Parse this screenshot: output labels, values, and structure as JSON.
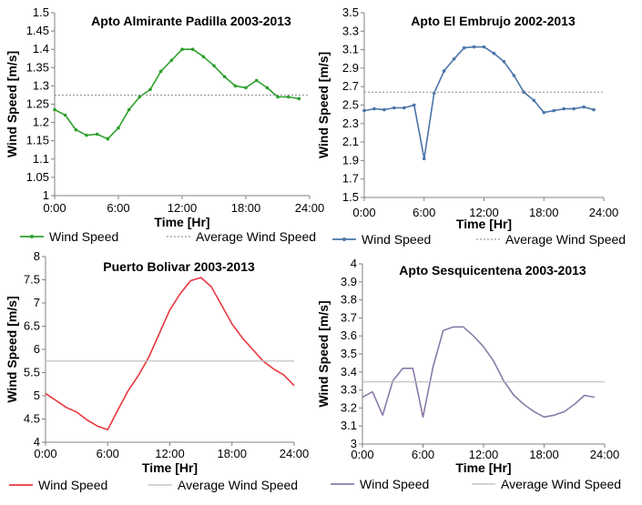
{
  "chart_data": [
    {
      "type": "line",
      "title": "Apto Almirante Padilla 2003-2013",
      "xlabel": "Time [Hr]",
      "ylabel": "Wind Speed [m/s]",
      "x_tick_labels": [
        "0:00",
        "6:00",
        "12:00",
        "18:00",
        "24:00"
      ],
      "y_tick_labels": [
        "1",
        "1.05",
        "1.1",
        "1.15",
        "1.2",
        "1.25",
        "1.3",
        "1.35",
        "1.4",
        "1.45",
        "1.5"
      ],
      "xlim": [
        0,
        24
      ],
      "ylim": [
        1,
        1.5
      ],
      "grid": false,
      "legend_position": "bottom",
      "marker": "dot",
      "series": [
        {
          "name": "Wind Speed",
          "color": "#2ca02c",
          "x": [
            0,
            1,
            2,
            3,
            4,
            5,
            6,
            7,
            8,
            9,
            10,
            11,
            12,
            13,
            14,
            15,
            16,
            17,
            18,
            19,
            20,
            21,
            22,
            23
          ],
          "values": [
            1.235,
            1.22,
            1.18,
            1.165,
            1.168,
            1.155,
            1.185,
            1.235,
            1.27,
            1.29,
            1.34,
            1.37,
            1.4,
            1.4,
            1.38,
            1.355,
            1.325,
            1.3,
            1.295,
            1.315,
            1.295,
            1.27,
            1.27,
            1.265
          ]
        },
        {
          "name": "Average Wind Speed",
          "color": "#999999",
          "style": "dotted",
          "x": [
            0,
            24
          ],
          "values": [
            1.275,
            1.275
          ]
        }
      ]
    },
    {
      "type": "line",
      "title": "Apto El Embrujo 2002-2013",
      "xlabel": "Time [Hr]",
      "ylabel": "Wind Speed [m/s]",
      "x_tick_labels": [
        "0:00",
        "6:00",
        "12:00",
        "18:00",
        "24:00"
      ],
      "y_tick_labels": [
        "1.5",
        "1.7",
        "1.9",
        "2.1",
        "2.3",
        "2.5",
        "2.7",
        "2.9",
        "3.1",
        "3.3",
        "3.5"
      ],
      "xlim": [
        0,
        24
      ],
      "ylim": [
        1.5,
        3.5
      ],
      "grid": false,
      "legend_position": "bottom",
      "marker": "dot",
      "series": [
        {
          "name": "Wind Speed",
          "color": "#4a74a8",
          "x": [
            0,
            1,
            2,
            3,
            4,
            5,
            6,
            7,
            8,
            9,
            10,
            11,
            12,
            13,
            14,
            15,
            16,
            17,
            18,
            19,
            20,
            21,
            22,
            23
          ],
          "values": [
            2.44,
            2.46,
            2.45,
            2.47,
            2.47,
            2.5,
            1.92,
            2.63,
            2.87,
            3.0,
            3.12,
            3.13,
            3.13,
            3.06,
            2.97,
            2.82,
            2.64,
            2.55,
            2.42,
            2.44,
            2.46,
            2.46,
            2.48,
            2.45
          ]
        },
        {
          "name": "Average Wind Speed",
          "color": "#999999",
          "style": "dotted",
          "x": [
            0,
            24
          ],
          "values": [
            2.64,
            2.64
          ]
        }
      ]
    },
    {
      "type": "line",
      "title": "Puerto Bolivar 2003-2013",
      "xlabel": "Time [Hr]",
      "ylabel": "Wind Speed [m/s]",
      "x_tick_labels": [
        "0:00",
        "6:00",
        "12:00",
        "18:00",
        "24:00"
      ],
      "y_tick_labels": [
        "4",
        "4.5",
        "5",
        "5.5",
        "6",
        "6.5",
        "7",
        "7.5",
        "8"
      ],
      "xlim": [
        0,
        24
      ],
      "ylim": [
        4,
        8
      ],
      "grid": false,
      "legend_position": "bottom",
      "marker": "none",
      "series": [
        {
          "name": "Wind Speed",
          "color": "#e8373f",
          "x": [
            0,
            1,
            2,
            3,
            4,
            5,
            6,
            7,
            8,
            9,
            10,
            11,
            12,
            13,
            14,
            15,
            16,
            17,
            18,
            19,
            20,
            21,
            22,
            23,
            24
          ],
          "values": [
            5.05,
            4.9,
            4.75,
            4.65,
            4.48,
            4.35,
            4.27,
            4.7,
            5.12,
            5.45,
            5.85,
            6.35,
            6.85,
            7.2,
            7.48,
            7.55,
            7.35,
            6.95,
            6.55,
            6.25,
            6.0,
            5.75,
            5.58,
            5.45,
            5.22
          ]
        },
        {
          "name": "Average Wind Speed",
          "color": "#bbbbbb",
          "style": "solid",
          "x": [
            0,
            24
          ],
          "values": [
            5.75,
            5.75
          ]
        }
      ]
    },
    {
      "type": "line",
      "title": "Apto Sesquicentena 2003-2013",
      "xlabel": "Time [Hr]",
      "ylabel": "Wind Speed [m/s]",
      "x_tick_labels": [
        "0:00",
        "6:00",
        "12:00",
        "18:00",
        "24:00"
      ],
      "y_tick_labels": [
        "3",
        "3.1",
        "3.2",
        "3.3",
        "3.4",
        "3.5",
        "3.6",
        "3.7",
        "3.8",
        "3.9",
        "4"
      ],
      "xlim": [
        0,
        24
      ],
      "ylim": [
        3,
        4
      ],
      "grid": false,
      "legend_position": "bottom",
      "marker": "none",
      "series": [
        {
          "name": "Wind Speed",
          "color": "#8a7aa8",
          "x": [
            0,
            1,
            2,
            3,
            4,
            5,
            6,
            7,
            8,
            9,
            10,
            11,
            12,
            13,
            14,
            15,
            16,
            17,
            18,
            19,
            20,
            21,
            22,
            23
          ],
          "values": [
            3.26,
            3.29,
            3.16,
            3.35,
            3.42,
            3.42,
            3.15,
            3.43,
            3.63,
            3.65,
            3.65,
            3.6,
            3.54,
            3.46,
            3.35,
            3.27,
            3.22,
            3.18,
            3.15,
            3.16,
            3.18,
            3.22,
            3.27,
            3.26
          ]
        },
        {
          "name": "Average Wind Speed",
          "color": "#bbbbbb",
          "style": "solid",
          "x": [
            0,
            24
          ],
          "values": [
            3.345,
            3.345
          ]
        }
      ]
    }
  ]
}
